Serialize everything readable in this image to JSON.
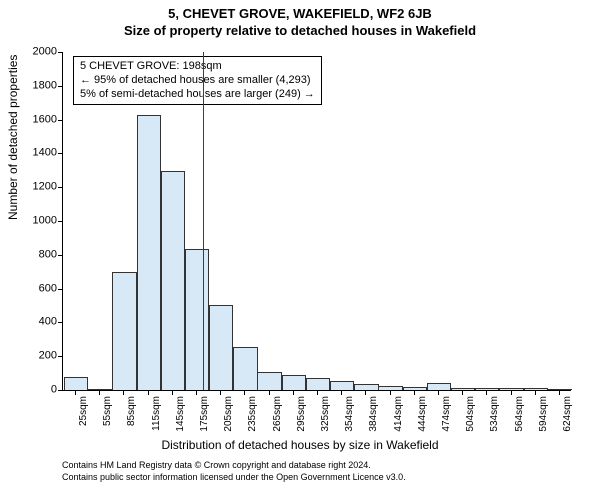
{
  "header": {
    "title_main": "5, CHEVET GROVE, WAKEFIELD, WF2 6JB",
    "title_sub": "Size of property relative to detached houses in Wakefield"
  },
  "axes": {
    "y_label": "Number of detached properties",
    "x_label": "Distribution of detached houses by size in Wakefield"
  },
  "chart": {
    "type": "bar",
    "ylim": [
      0,
      2000
    ],
    "ytick_step": 200,
    "y_ticks": [
      0,
      200,
      400,
      600,
      800,
      1000,
      1200,
      1400,
      1600,
      1800,
      2000
    ],
    "categories": [
      "25sqm",
      "55sqm",
      "85sqm",
      "115sqm",
      "145sqm",
      "175sqm",
      "205sqm",
      "235sqm",
      "265sqm",
      "295sqm",
      "325sqm",
      "354sqm",
      "384sqm",
      "414sqm",
      "444sqm",
      "474sqm",
      "504sqm",
      "534sqm",
      "564sqm",
      "594sqm",
      "624sqm"
    ],
    "values": [
      70,
      0,
      690,
      1620,
      1290,
      830,
      500,
      250,
      100,
      85,
      65,
      50,
      30,
      20,
      12,
      35,
      8,
      6,
      5,
      4,
      3
    ],
    "bar_fill": "#d7e9f7",
    "bar_stroke": "#333333",
    "bar_width_ratio": 0.92,
    "background_color": "#ffffff",
    "ref_line_color": "#cc0000",
    "ref_line_x_index": 5.8
  },
  "annotation": {
    "line1": "5 CHEVET GROVE: 198sqm",
    "line2": "← 95% of detached houses are smaller (4,293)",
    "line3": "5% of semi-detached houses are larger (249) →"
  },
  "footer": {
    "line1": "Contains HM Land Registry data © Crown copyright and database right 2024.",
    "line2": "Contains public sector information licensed under the Open Government Licence v3.0."
  }
}
